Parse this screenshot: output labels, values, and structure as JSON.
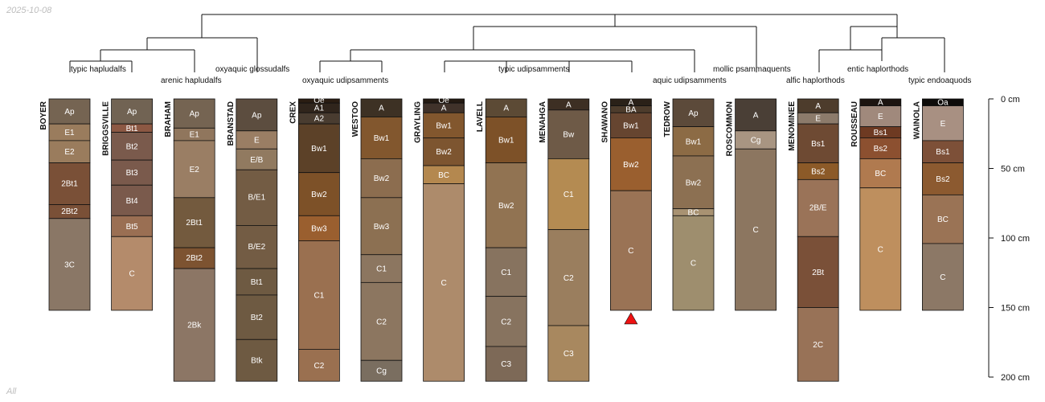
{
  "date_label": "2025-10-08",
  "footer_label": "All",
  "depth_axis": {
    "unit": "cm",
    "max_depth": 200,
    "ticks": [
      0,
      50,
      100,
      150,
      200
    ]
  },
  "subgroup_labels": [
    "typic hapludalfs",
    "arenic hapludalfs",
    "oxyaquic glossudalfs",
    "oxyaquic udipsamments",
    "typic udipsamments",
    "aquic udipsamments",
    "mollic psammaquents",
    "alfic haplorthods",
    "entic haplorthods",
    "typic endoaquods"
  ],
  "profiles": [
    {
      "name": "BOYER",
      "horizons": [
        {
          "name": "Ap",
          "top": 0,
          "bottom": 18,
          "color": "#756452"
        },
        {
          "name": "E1",
          "top": 18,
          "bottom": 30,
          "color": "#9a7c5d"
        },
        {
          "name": "E2",
          "top": 30,
          "bottom": 46,
          "color": "#9a7c5d"
        },
        {
          "name": "2Bt1",
          "top": 46,
          "bottom": 76,
          "color": "#7a5037"
        },
        {
          "name": "2Bt2",
          "top": 76,
          "bottom": 86,
          "color": "#7a5037"
        },
        {
          "name": "3C",
          "top": 86,
          "bottom": 152,
          "color": "#8a7766"
        }
      ]
    },
    {
      "name": "BRIGGSVILLE",
      "horizons": [
        {
          "name": "Ap",
          "top": 0,
          "bottom": 18,
          "color": "#716353"
        },
        {
          "name": "Bt1",
          "top": 18,
          "bottom": 24,
          "color": "#8c5843"
        },
        {
          "name": "Bt2",
          "top": 24,
          "bottom": 44,
          "color": "#7a5a4c"
        },
        {
          "name": "Bt3",
          "top": 44,
          "bottom": 62,
          "color": "#7a5a4c"
        },
        {
          "name": "Bt4",
          "top": 62,
          "bottom": 84,
          "color": "#7a5a4c"
        },
        {
          "name": "Bt5",
          "top": 84,
          "bottom": 99,
          "color": "#9a6f53"
        },
        {
          "name": "C",
          "top": 99,
          "bottom": 152,
          "color": "#b48b6b"
        }
      ]
    },
    {
      "name": "BRAHAM",
      "horizons": [
        {
          "name": "Ap",
          "top": 0,
          "bottom": 21,
          "color": "#756452"
        },
        {
          "name": "E1",
          "top": 21,
          "bottom": 30,
          "color": "#90765d"
        },
        {
          "name": "E2",
          "top": 30,
          "bottom": 71,
          "color": "#9a7e64"
        },
        {
          "name": "2Bt1",
          "top": 71,
          "bottom": 107,
          "color": "#735a3e"
        },
        {
          "name": "2Bt2",
          "top": 107,
          "bottom": 122,
          "color": "#7d5331"
        },
        {
          "name": "2Bk",
          "top": 122,
          "bottom": 203,
          "color": "#8c7665"
        }
      ]
    },
    {
      "name": "BRANSTAD",
      "horizons": [
        {
          "name": "Ap",
          "top": 0,
          "bottom": 23,
          "color": "#5c4d3f"
        },
        {
          "name": "E",
          "top": 23,
          "bottom": 36,
          "color": "#9a7e64"
        },
        {
          "name": "E/B",
          "top": 36,
          "bottom": 51,
          "color": "#917a60"
        },
        {
          "name": "B/E1",
          "top": 51,
          "bottom": 91,
          "color": "#735c44"
        },
        {
          "name": "B/E2",
          "top": 91,
          "bottom": 122,
          "color": "#735c44"
        },
        {
          "name": "Bt1",
          "top": 122,
          "bottom": 141,
          "color": "#6e5a42"
        },
        {
          "name": "Bt2",
          "top": 141,
          "bottom": 173,
          "color": "#6e5a42"
        },
        {
          "name": "Btk",
          "top": 173,
          "bottom": 203,
          "color": "#6e5a42"
        }
      ]
    },
    {
      "name": "CREX",
      "horizons": [
        {
          "name": "Oe",
          "top": 0,
          "bottom": 3,
          "color": "#2a1d12"
        },
        {
          "name": "A1",
          "top": 3,
          "bottom": 10,
          "color": "#30251c"
        },
        {
          "name": "A2",
          "top": 10,
          "bottom": 18,
          "color": "#493c30"
        },
        {
          "name": "Bw1",
          "top": 18,
          "bottom": 53,
          "color": "#5c4128"
        },
        {
          "name": "Bw2",
          "top": 53,
          "bottom": 84,
          "color": "#7d5128"
        },
        {
          "name": "Bw3",
          "top": 84,
          "bottom": 102,
          "color": "#9a5f2f"
        },
        {
          "name": "C1",
          "top": 102,
          "bottom": 180,
          "color": "#9a7050"
        },
        {
          "name": "C2",
          "top": 180,
          "bottom": 203,
          "color": "#9a7050"
        }
      ]
    },
    {
      "name": "WESTOO",
      "horizons": [
        {
          "name": "A",
          "top": 0,
          "bottom": 13,
          "color": "#3d3124"
        },
        {
          "name": "Bw1",
          "top": 13,
          "bottom": 43,
          "color": "#82572e"
        },
        {
          "name": "Bw2",
          "top": 43,
          "bottom": 71,
          "color": "#8c6d4f"
        },
        {
          "name": "Bw3",
          "top": 71,
          "bottom": 112,
          "color": "#8c7052"
        },
        {
          "name": "C1",
          "top": 112,
          "bottom": 132,
          "color": "#8c7660"
        },
        {
          "name": "C2",
          "top": 132,
          "bottom": 188,
          "color": "#8c7660"
        },
        {
          "name": "Cg",
          "top": 188,
          "bottom": 203,
          "color": "#7a6e60"
        }
      ]
    },
    {
      "name": "GRAYLING",
      "horizons": [
        {
          "name": "Oe",
          "top": 0,
          "bottom": 3,
          "color": "#241a12"
        },
        {
          "name": "A",
          "top": 3,
          "bottom": 10,
          "color": "#40322a"
        },
        {
          "name": "Bw1",
          "top": 10,
          "bottom": 28,
          "color": "#82572e"
        },
        {
          "name": "Bw2",
          "top": 28,
          "bottom": 48,
          "color": "#7d5530"
        },
        {
          "name": "BC",
          "top": 48,
          "bottom": 61,
          "color": "#b4884f"
        },
        {
          "name": "C",
          "top": 61,
          "bottom": 203,
          "color": "#ad8b6b"
        }
      ]
    },
    {
      "name": "LAVELL",
      "horizons": [
        {
          "name": "A",
          "top": 0,
          "bottom": 13,
          "color": "#5c4a35"
        },
        {
          "name": "Bw1",
          "top": 13,
          "bottom": 46,
          "color": "#7d5128"
        },
        {
          "name": "Bw2",
          "top": 46,
          "bottom": 107,
          "color": "#917352"
        },
        {
          "name": "C1",
          "top": 107,
          "bottom": 142,
          "color": "#87735f"
        },
        {
          "name": "C2",
          "top": 142,
          "bottom": 178,
          "color": "#87735f"
        },
        {
          "name": "C3",
          "top": 178,
          "bottom": 203,
          "color": "#7d6957"
        }
      ]
    },
    {
      "name": "MENAHGA",
      "horizons": [
        {
          "name": "A",
          "top": 0,
          "bottom": 8,
          "color": "#3d2f23"
        },
        {
          "name": "Bw",
          "top": 8,
          "bottom": 43,
          "color": "#6e5a47"
        },
        {
          "name": "C1",
          "top": 43,
          "bottom": 94,
          "color": "#b48b52"
        },
        {
          "name": "C2",
          "top": 94,
          "bottom": 163,
          "color": "#9a7e5e"
        },
        {
          "name": "C3",
          "top": 163,
          "bottom": 203,
          "color": "#a8885f"
        }
      ]
    },
    {
      "name": "SHAWANO",
      "horizons": [
        {
          "name": "A",
          "top": 0,
          "bottom": 5,
          "color": "#2a2118"
        },
        {
          "name": "BA",
          "top": 5,
          "bottom": 10,
          "color": "#4d3c2c"
        },
        {
          "name": "Bw1",
          "top": 10,
          "bottom": 28,
          "color": "#664530"
        },
        {
          "name": "Bw2",
          "top": 28,
          "bottom": 66,
          "color": "#9a5f2f"
        },
        {
          "name": "C",
          "top": 66,
          "bottom": 152,
          "color": "#9a7355"
        }
      ]
    },
    {
      "name": "TEDROW",
      "horizons": [
        {
          "name": "Ap",
          "top": 0,
          "bottom": 20,
          "color": "#5c4a3a"
        },
        {
          "name": "Bw1",
          "top": 20,
          "bottom": 41,
          "color": "#8c6b45"
        },
        {
          "name": "Bw2",
          "top": 41,
          "bottom": 79,
          "color": "#8c7052"
        },
        {
          "name": "BC",
          "top": 79,
          "bottom": 84,
          "color": "#a89272"
        },
        {
          "name": "C",
          "top": 84,
          "bottom": 152,
          "color": "#9e8e6e"
        }
      ]
    },
    {
      "name": "ROSCOMMON",
      "horizons": [
        {
          "name": "A",
          "top": 0,
          "bottom": 23,
          "color": "#4a3f36"
        },
        {
          "name": "Cg",
          "top": 23,
          "bottom": 36,
          "color": "#a89582"
        },
        {
          "name": "C",
          "top": 36,
          "bottom": 152,
          "color": "#8c7660"
        }
      ]
    },
    {
      "name": "MENOMINEE",
      "horizons": [
        {
          "name": "A",
          "top": 0,
          "bottom": 10,
          "color": "#4d3c2c"
        },
        {
          "name": "E",
          "top": 10,
          "bottom": 18,
          "color": "#8c7b6b"
        },
        {
          "name": "Bs1",
          "top": 18,
          "bottom": 46,
          "color": "#6e4a33"
        },
        {
          "name": "Bs2",
          "top": 46,
          "bottom": 58,
          "color": "#8c5a28"
        },
        {
          "name": "2B/E",
          "top": 58,
          "bottom": 99,
          "color": "#9a7358"
        },
        {
          "name": "2Bt",
          "top": 99,
          "bottom": 150,
          "color": "#7a5038"
        },
        {
          "name": "2C",
          "top": 150,
          "bottom": 203,
          "color": "#987257"
        }
      ]
    },
    {
      "name": "ROUSSEAU",
      "horizons": [
        {
          "name": "A",
          "top": 0,
          "bottom": 5,
          "color": "#1c1410"
        },
        {
          "name": "E",
          "top": 5,
          "bottom": 20,
          "color": "#a0897c"
        },
        {
          "name": "Bs1",
          "top": 20,
          "bottom": 28,
          "color": "#6e3a22"
        },
        {
          "name": "Bs2",
          "top": 28,
          "bottom": 43,
          "color": "#8c5030"
        },
        {
          "name": "BC",
          "top": 43,
          "bottom": 64,
          "color": "#b07a4f"
        },
        {
          "name": "C",
          "top": 64,
          "bottom": 152,
          "color": "#be8f5e"
        }
      ]
    },
    {
      "name": "WAINOLA",
      "horizons": [
        {
          "name": "Oa",
          "top": 0,
          "bottom": 5,
          "color": "#0d0b09"
        },
        {
          "name": "E",
          "top": 5,
          "bottom": 30,
          "color": "#a89082"
        },
        {
          "name": "Bs1",
          "top": 30,
          "bottom": 46,
          "color": "#7d5038"
        },
        {
          "name": "Bs2",
          "top": 46,
          "bottom": 69,
          "color": "#8c5a30"
        },
        {
          "name": "BC",
          "top": 69,
          "bottom": 104,
          "color": "#9a7355"
        },
        {
          "name": "C",
          "top": 104,
          "bottom": 152,
          "color": "#8c7866"
        }
      ]
    }
  ],
  "marker_profile": "SHAWANO",
  "marker_color": "#ee1111"
}
